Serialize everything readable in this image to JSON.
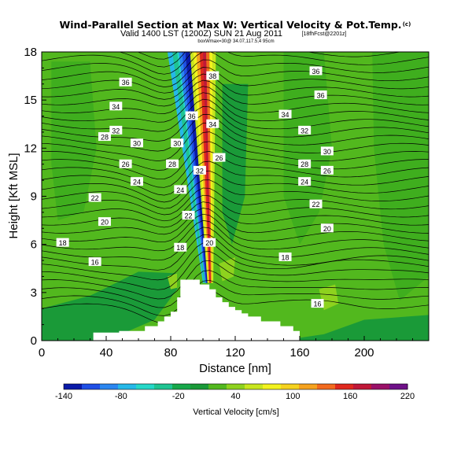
{
  "header": {
    "title": "Wind-Parallel Section at Max W: Vertical Velocity & Pot.Temp.",
    "title_mark": "(c)",
    "subtitle": "Valid 1400 LST (1200Z) SUN 21 Aug 2011",
    "subtitle_tag": "[18fhFcst@2201z]",
    "line3": "boxWmax=30@ 34.07,117.5,4 95cm"
  },
  "chart_data": {
    "type": "heatmap",
    "title": "Wind-Parallel Section at Max W: Vertical Velocity & Pot.Temp.",
    "xlabel": "Distance [nm]",
    "ylabel": "Height [Kft MSL]",
    "xlim": [
      0,
      240
    ],
    "ylim": [
      0,
      18
    ],
    "x_ticks": [
      "0",
      "40",
      "80",
      "120",
      "160",
      "200"
    ],
    "x_tick_values": [
      0,
      40,
      80,
      120,
      160,
      200
    ],
    "y_ticks": [
      "0",
      "3",
      "6",
      "9",
      "12",
      "15",
      "18"
    ],
    "y_tick_values": [
      0,
      3,
      6,
      9,
      12,
      15,
      18
    ],
    "background_color": "#52b81e",
    "terrain": [
      [
        0,
        0
      ],
      [
        32,
        0
      ],
      [
        32,
        0.5
      ],
      [
        48,
        0.5
      ],
      [
        48,
        0.6
      ],
      [
        64,
        0.6
      ],
      [
        64,
        0.9
      ],
      [
        72,
        0.9
      ],
      [
        72,
        1.2
      ],
      [
        76,
        1.2
      ],
      [
        76,
        1.5
      ],
      [
        80,
        1.5
      ],
      [
        80,
        1.8
      ],
      [
        84,
        1.8
      ],
      [
        84,
        2.7
      ],
      [
        86,
        2.7
      ],
      [
        86,
        3.8
      ],
      [
        98,
        3.8
      ],
      [
        98,
        3.5
      ],
      [
        104,
        3.5
      ],
      [
        104,
        3.2
      ],
      [
        108,
        3.2
      ],
      [
        108,
        2.7
      ],
      [
        112,
        2.7
      ],
      [
        112,
        2.4
      ],
      [
        116,
        2.4
      ],
      [
        116,
        2.1
      ],
      [
        120,
        2.1
      ],
      [
        120,
        1.9
      ],
      [
        124,
        1.9
      ],
      [
        124,
        1.7
      ],
      [
        128,
        1.7
      ],
      [
        128,
        1.5
      ],
      [
        136,
        1.5
      ],
      [
        136,
        1.2
      ],
      [
        148,
        1.2
      ],
      [
        148,
        0.9
      ],
      [
        156,
        0.9
      ],
      [
        156,
        0.6
      ],
      [
        160,
        0.6
      ],
      [
        160,
        0
      ]
    ],
    "updraft_core": {
      "min_velocity": -140,
      "max_velocity": 220,
      "downdraft_x_range": [
        88,
        97
      ],
      "updraft_x_range": [
        97,
        112
      ],
      "peak_height": 18
    },
    "contour_labels": [
      {
        "text": "36",
        "x": 52,
        "y": 16.1
      },
      {
        "text": "34",
        "x": 46,
        "y": 14.6
      },
      {
        "text": "32",
        "x": 46,
        "y": 13.1
      },
      {
        "text": "30",
        "x": 59,
        "y": 12.3
      },
      {
        "text": "28",
        "x": 39,
        "y": 12.7
      },
      {
        "text": "26",
        "x": 52,
        "y": 11.0
      },
      {
        "text": "24",
        "x": 59,
        "y": 9.9
      },
      {
        "text": "22",
        "x": 33,
        "y": 8.9
      },
      {
        "text": "20",
        "x": 39,
        "y": 7.4
      },
      {
        "text": "18",
        "x": 13,
        "y": 6.1
      },
      {
        "text": "16",
        "x": 33,
        "y": 4.9
      },
      {
        "text": "36",
        "x": 170,
        "y": 16.8
      },
      {
        "text": "36",
        "x": 173,
        "y": 15.3
      },
      {
        "text": "34",
        "x": 151,
        "y": 14.1
      },
      {
        "text": "32",
        "x": 163,
        "y": 13.1
      },
      {
        "text": "30",
        "x": 177,
        "y": 11.8
      },
      {
        "text": "28",
        "x": 163,
        "y": 11.0
      },
      {
        "text": "26",
        "x": 177,
        "y": 10.6
      },
      {
        "text": "24",
        "x": 163,
        "y": 9.9
      },
      {
        "text": "22",
        "x": 170,
        "y": 8.5
      },
      {
        "text": "20",
        "x": 177,
        "y": 7.0
      },
      {
        "text": "18",
        "x": 151,
        "y": 5.2
      },
      {
        "text": "16",
        "x": 171,
        "y": 2.3
      },
      {
        "text": "38",
        "x": 106,
        "y": 16.5
      },
      {
        "text": "36",
        "x": 93,
        "y": 14.0
      },
      {
        "text": "34",
        "x": 106,
        "y": 13.5
      },
      {
        "text": "32",
        "x": 98,
        "y": 10.6
      },
      {
        "text": "30",
        "x": 84,
        "y": 12.3
      },
      {
        "text": "28",
        "x": 81,
        "y": 11.0
      },
      {
        "text": "26",
        "x": 110,
        "y": 11.4
      },
      {
        "text": "24",
        "x": 86,
        "y": 9.4
      },
      {
        "text": "22",
        "x": 91,
        "y": 7.8
      },
      {
        "text": "20",
        "x": 104,
        "y": 6.1
      },
      {
        "text": "18",
        "x": 86,
        "y": 5.8
      }
    ]
  },
  "colorbar": {
    "label": "Vertical Velocity [cm/s]",
    "tick_labels": [
      "-140",
      "-80",
      "-20",
      "40",
      "100",
      "160",
      "220"
    ],
    "colors": [
      "#0a1aa8",
      "#1f4fe6",
      "#2a86f0",
      "#25b8e8",
      "#25d8c8",
      "#1fc492",
      "#17a84a",
      "#1a9a38",
      "#52b81e",
      "#8ed21e",
      "#c8e61e",
      "#f2f21e",
      "#f5d21e",
      "#f5a21e",
      "#f26a1e",
      "#e0281e",
      "#c01838",
      "#9a1068",
      "#6e1088"
    ]
  }
}
